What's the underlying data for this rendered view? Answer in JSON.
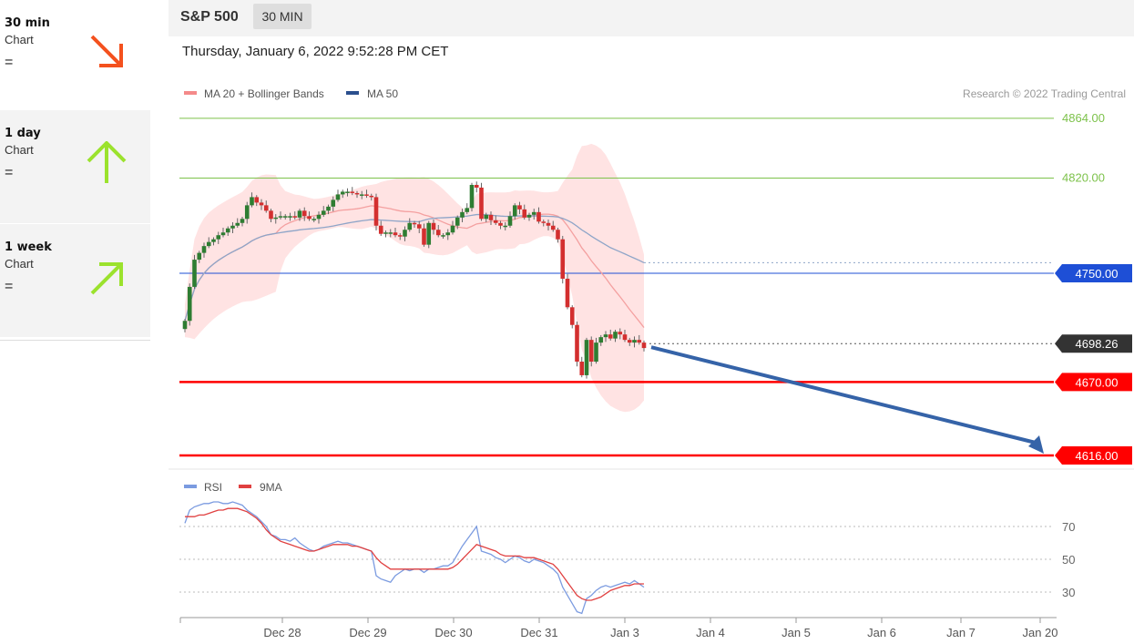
{
  "sidebar": {
    "items": [
      {
        "label": "30 min",
        "sub": "Chart",
        "eq": "=",
        "arrow": "down-right-arrow-icon",
        "color": "#f4511e"
      },
      {
        "label": "1 day",
        "sub": "Chart",
        "eq": "=",
        "arrow": "up-arrow-icon",
        "color": "#9be22d"
      },
      {
        "label": "1 week",
        "sub": "Chart",
        "eq": "=",
        "arrow": "up-right-arrow-icon",
        "color": "#9be22d"
      }
    ]
  },
  "header": {
    "symbol": "S&P 500",
    "timeframe": "30 MIN"
  },
  "datetime": "Thursday, January 6, 2022 9:52:28 PM CET",
  "legend": {
    "ma20": "MA 20 + Bollinger Bands",
    "ma50": "MA 50",
    "credit": "Research © 2022 Trading Central",
    "rsi": "RSI",
    "rsi_ma": "9MA"
  },
  "colors": {
    "up_candle": "#2e7d32",
    "down_candle": "#d32f2f",
    "band": "#ffdede",
    "ma20": "#f4a0a0",
    "ma50": "#8ea5c8",
    "support": "#ff0000",
    "level_blue": "#1e4fd6",
    "resistance": "#7dc24b",
    "rsi": "#7b9be0",
    "rsi_ma": "#e04040",
    "target_arrow": "#3563a8"
  },
  "chart_data": {
    "type": "candlestick",
    "y_range": [
      4598,
      4898
    ],
    "x_labels": [
      "Dec 28",
      "Dec 29",
      "Dec 30",
      "Dec 31",
      "Jan 3",
      "Jan 4",
      "Jan 5",
      "Jan 6",
      "Jan 7",
      "Jan 20"
    ],
    "levels": [
      {
        "value": 4864.0,
        "label": "4864.00",
        "kind": "resistance"
      },
      {
        "value": 4820.0,
        "label": "4820.00",
        "kind": "resistance"
      },
      {
        "value": 4750.0,
        "label": "4750.00",
        "kind": "pivot"
      },
      {
        "value": 4670.0,
        "label": "4670.00",
        "kind": "support"
      },
      {
        "value": 4616.0,
        "label": "4616.00",
        "kind": "support"
      }
    ],
    "last_price": 4698.26,
    "last_price_label": "4698.26",
    "target": 4616.0,
    "close": [
      4715,
      4740,
      4760,
      4765,
      4770,
      4773,
      4775,
      4778,
      4780,
      4783,
      4785,
      4787,
      4790,
      4800,
      4806,
      4802,
      4800,
      4796,
      4790,
      4791,
      4792,
      4792,
      4792,
      4791,
      4796,
      4792,
      4790,
      4790,
      4793,
      4796,
      4799,
      4804,
      4808,
      4810,
      4810,
      4809,
      4808,
      4808,
      4807,
      4806,
      4785,
      4779,
      4780,
      4780,
      4778,
      4777,
      4782,
      4787,
      4786,
      4783,
      4771,
      4787,
      4782,
      4778,
      4778,
      4780,
      4785,
      4791,
      4795,
      4798,
      4815,
      4813,
      4790,
      4793,
      4789,
      4787,
      4785,
      4785,
      4792,
      4800,
      4797,
      4791,
      4793,
      4795,
      4788,
      4787,
      4785,
      4782,
      4775,
      4746,
      4725,
      4712,
      4685,
      4675,
      4701,
      4685,
      4699,
      4703,
      4705,
      4702,
      4707,
      4705,
      4701,
      4699,
      4701,
      4699,
      4695
    ],
    "rsi": {
      "y_range": [
        15,
        90
      ],
      "levels": [
        {
          "value": 70,
          "label": "70"
        },
        {
          "value": 50,
          "label": "50"
        },
        {
          "value": 30,
          "label": "30"
        }
      ],
      "rsi_values": [
        72,
        80,
        82,
        83,
        84,
        84,
        85,
        85,
        84,
        84,
        85,
        84,
        83,
        80,
        78,
        76,
        73,
        70,
        65,
        64,
        62,
        62,
        61,
        63,
        60,
        58,
        56,
        55,
        56,
        58,
        59,
        60,
        61,
        60,
        60,
        59,
        58,
        57,
        56,
        55,
        40,
        38,
        37,
        36,
        40,
        42,
        44,
        43,
        44,
        44,
        42,
        44,
        44,
        45,
        46,
        46,
        48,
        53,
        58,
        62,
        66,
        70,
        55,
        54,
        53,
        51,
        50,
        48,
        50,
        52,
        51,
        49,
        48,
        50,
        49,
        48,
        46,
        44,
        41,
        33,
        28,
        23,
        18,
        17,
        26,
        28,
        31,
        33,
        34,
        33,
        34,
        35,
        36,
        35,
        37,
        35,
        33
      ],
      "ma_values": [
        76,
        76,
        76,
        77,
        77,
        78,
        79,
        80,
        80,
        81,
        81,
        81,
        80,
        79,
        77,
        75,
        72,
        68,
        65,
        63,
        61,
        60,
        59,
        58,
        57,
        56,
        55,
        55,
        56,
        57,
        58,
        59,
        59,
        59,
        59,
        58,
        58,
        57,
        56,
        55,
        51,
        48,
        46,
        44,
        44,
        44,
        44,
        44,
        44,
        44,
        44,
        44,
        44,
        44,
        44,
        44,
        45,
        47,
        50,
        53,
        56,
        59,
        58,
        57,
        56,
        55,
        53,
        52,
        52,
        52,
        52,
        51,
        51,
        51,
        50,
        49,
        48,
        47,
        44,
        40,
        36,
        32,
        28,
        26,
        25,
        25,
        26,
        27,
        29,
        31,
        32,
        33,
        34,
        34,
        35,
        35,
        35
      ]
    }
  }
}
